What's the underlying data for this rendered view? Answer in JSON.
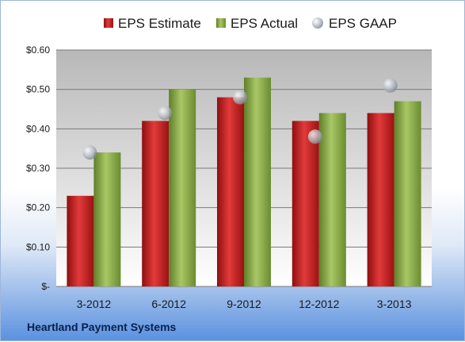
{
  "chart_data": {
    "type": "bar",
    "title": "",
    "xlabel": "",
    "ylabel": "",
    "categories": [
      "3-2012",
      "6-2012",
      "9-2012",
      "12-2012",
      "3-2013"
    ],
    "series": [
      {
        "name": "EPS Estimate",
        "kind": "bar",
        "values": [
          0.23,
          0.42,
          0.48,
          0.42,
          0.44
        ]
      },
      {
        "name": "EPS Actual",
        "kind": "bar",
        "values": [
          0.34,
          0.5,
          0.53,
          0.44,
          0.47
        ]
      },
      {
        "name": "EPS GAAP",
        "kind": "scatter",
        "values": [
          0.34,
          0.44,
          0.48,
          0.38,
          0.51
        ]
      }
    ],
    "y_ticks": [
      "$-",
      "$0.10",
      "$0.20",
      "$0.30",
      "$0.40",
      "$0.50",
      "$0.60"
    ],
    "ylim": [
      0,
      0.6
    ],
    "grid": true,
    "legend_position": "top",
    "colors": {
      "estimate": "#cc1f1f",
      "actual": "#8db04a",
      "gaap": "#b9c0c8"
    },
    "source_label": "Heartland Payment Systems"
  }
}
